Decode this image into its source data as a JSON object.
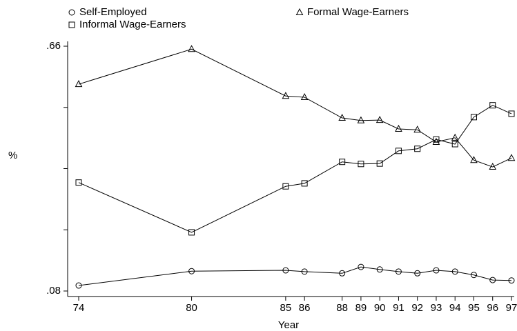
{
  "chart_data": {
    "type": "line",
    "x": [
      74,
      80,
      85,
      86,
      88,
      89,
      90,
      91,
      92,
      93,
      94,
      95,
      96,
      97
    ],
    "xlim": [
      74,
      97
    ],
    "xticks": [
      74,
      80,
      85,
      86,
      88,
      89,
      90,
      91,
      92,
      93,
      94,
      95,
      96,
      97
    ],
    "ylim": [
      0.08,
      0.66
    ],
    "yticks": [
      {
        "value": 0.08,
        "label": ".08"
      },
      {
        "value": 0.225,
        "label": null
      },
      {
        "value": 0.37,
        "label": null
      },
      {
        "value": 0.515,
        "label": null
      },
      {
        "value": 0.66,
        "label": ".66"
      }
    ],
    "x_label": "Year",
    "y_label": "%",
    "series": [
      {
        "name": "Self-Employed",
        "color": "#000000",
        "marker": "circle",
        "values": [
          0.093,
          0.127,
          0.129,
          0.126,
          0.122,
          0.137,
          0.131,
          0.126,
          0.122,
          0.129,
          0.126,
          0.118,
          0.106,
          0.105
        ]
      },
      {
        "name": "Formal Wage-Earners",
        "color": "#000000",
        "marker": "triangle",
        "values": [
          0.57,
          0.653,
          0.542,
          0.539,
          0.49,
          0.484,
          0.485,
          0.464,
          0.462,
          0.433,
          0.443,
          0.39,
          0.374,
          0.395
        ]
      },
      {
        "name": "Informal Wage-Earners",
        "color": "#000000",
        "marker": "square",
        "values": [
          0.337,
          0.219,
          0.328,
          0.335,
          0.386,
          0.381,
          0.382,
          0.412,
          0.417,
          0.439,
          0.428,
          0.492,
          0.52,
          0.5
        ]
      }
    ]
  }
}
